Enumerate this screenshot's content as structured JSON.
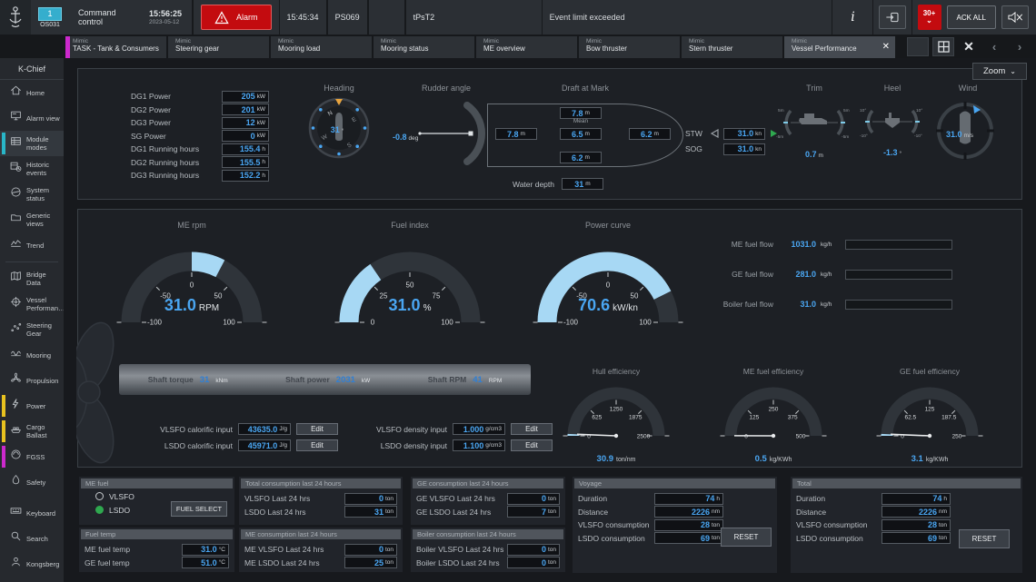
{
  "top_bar": {
    "station": {
      "number": "1",
      "name": "OS031"
    },
    "app_title": "Command control",
    "time": "15:56:25",
    "date": "2023-05-12",
    "alarm_button": "Alarm",
    "last_event_time": "15:45:34",
    "tag1": "PS069",
    "tag2": "tPsT2",
    "message": "Event limit exceeded",
    "unack_badge": "30+",
    "ack_all": "ACK ALL"
  },
  "tab_bar": {
    "tabs": [
      {
        "caption": "Mimic",
        "label": "TASK - Tank & Consumers",
        "accent": "#cc29cc",
        "active": false
      },
      {
        "caption": "Mimic",
        "label": "Steering gear",
        "active": false
      },
      {
        "caption": "Mimic",
        "label": "Mooring load",
        "active": false
      },
      {
        "caption": "Mimic",
        "label": "Mooring status",
        "active": false
      },
      {
        "caption": "Mimic",
        "label": "ME overview",
        "active": false
      },
      {
        "caption": "Mimic",
        "label": "Bow thruster",
        "active": false
      },
      {
        "caption": "Mimic",
        "label": "Stern thruster",
        "active": false
      },
      {
        "caption": "Mimic",
        "label": "Vessel Performance",
        "active": true,
        "closable": true
      }
    ]
  },
  "sidebar": {
    "title": "K-Chief",
    "primary": [
      {
        "label": "Home",
        "icon": "home"
      },
      {
        "label": "Alarm view",
        "icon": "alarm-view"
      },
      {
        "label": "Module modes",
        "icon": "module-modes",
        "accent": "#29b6c8",
        "active": true
      },
      {
        "label": "Historic events",
        "icon": "historic-events"
      },
      {
        "label": "System status",
        "icon": "system-status"
      },
      {
        "label": "Generic views",
        "icon": "generic-views"
      },
      {
        "label": "Trend",
        "icon": "trend"
      }
    ],
    "secondary": [
      {
        "label": "Bridge Data",
        "icon": "bridge-data"
      },
      {
        "label": "Vessel Performan…",
        "icon": "vessel-performance"
      },
      {
        "label": "Steering Gear",
        "icon": "steering-gear"
      },
      {
        "label": "Mooring",
        "icon": "mooring"
      },
      {
        "label": "Propulsion",
        "icon": "propulsion"
      },
      {
        "label": "Power",
        "icon": "power",
        "accent": "#e8c21f"
      },
      {
        "label": "Cargo Ballast",
        "icon": "cargo-ballast",
        "accent": "#e8c21f"
      },
      {
        "label": "FGSS",
        "icon": "fgss",
        "accent": "#cc29cc"
      },
      {
        "label": "Safety",
        "icon": "safety"
      }
    ],
    "footer": [
      {
        "label": "Keyboard",
        "icon": "keyboard"
      },
      {
        "label": "Search",
        "icon": "search"
      },
      {
        "label": "Kongsberg",
        "icon": "kongsberg"
      }
    ]
  },
  "zoom_control": {
    "label": "Zoom"
  },
  "power_summary": {
    "rows": [
      {
        "label": "DG1 Power",
        "value": "205",
        "unit": "kW"
      },
      {
        "label": "DG2 Power",
        "value": "201",
        "unit": "kW"
      },
      {
        "label": "DG3 Power",
        "value": "12",
        "unit": "kW"
      },
      {
        "label": "SG Power",
        "value": "0",
        "unit": "kW"
      },
      {
        "label": "DG1 Running hours",
        "value": "155.4",
        "unit": "h"
      },
      {
        "label": "DG2 Running hours",
        "value": "155.5",
        "unit": "h"
      },
      {
        "label": "DG3 Running hours",
        "value": "152.2",
        "unit": "h"
      }
    ]
  },
  "heading": {
    "title": "Heading",
    "value": "31",
    "unit": "°",
    "points": [
      "N",
      "E",
      "S",
      "W"
    ]
  },
  "rudder": {
    "title": "Rudder angle",
    "value": "-0.8",
    "unit": "deg"
  },
  "draft": {
    "title": "Draft at Mark",
    "mean_label": "Mean",
    "top": {
      "value": "7.8",
      "unit": "m"
    },
    "aft": {
      "value": "7.8",
      "unit": "m"
    },
    "mean": {
      "value": "6.5",
      "unit": "m"
    },
    "fwd": {
      "value": "6.2",
      "unit": "m"
    },
    "bottom": {
      "value": "6.2",
      "unit": "m"
    },
    "water_depth": {
      "label": "Water depth",
      "value": "31",
      "unit": "m"
    }
  },
  "speed": {
    "stw": {
      "label": "STW",
      "value": "31.0",
      "unit": "kn"
    },
    "sog": {
      "label": "SOG",
      "value": "31.0",
      "unit": "kn"
    }
  },
  "trim": {
    "title": "Trim",
    "value": "0.7",
    "unit": "m",
    "scale": [
      "5m",
      "-5m"
    ]
  },
  "heel": {
    "title": "Heel",
    "value": "-1.3",
    "unit": "°",
    "scale": [
      "10°",
      "-10°"
    ]
  },
  "wind": {
    "title": "Wind",
    "value": "31.0",
    "unit": "m/s"
  },
  "gauges": {
    "me_rpm": {
      "title": "ME rpm",
      "min": -100,
      "max": 100,
      "ticks": [
        "-100",
        "-50",
        "0",
        "50",
        "100"
      ],
      "value": 31,
      "display": "31.0",
      "unit": "RPM",
      "fill_from": 0,
      "size": "large"
    },
    "fuel_index": {
      "title": "Fuel index",
      "min": 0,
      "max": 100,
      "ticks": [
        "0",
        "25",
        "50",
        "75",
        "100"
      ],
      "value": 31,
      "display": "31.0",
      "unit": "%",
      "fill_from": 0,
      "size": "large"
    },
    "power_curve": {
      "title": "Power curve",
      "min": -100,
      "max": 100,
      "ticks": [
        "-100",
        "-50",
        "0",
        "50",
        "100"
      ],
      "value": 70.6,
      "display": "70.6",
      "unit": "kW/kn",
      "fill_from": -100,
      "size": "large"
    },
    "hull_efficiency": {
      "title": "Hull efficiency",
      "min": 0,
      "max": 2500,
      "ticks": [
        "0",
        "625",
        "1250",
        "1875",
        "2500"
      ],
      "value": 30.9,
      "display": "30.9",
      "unit": "ton/nm",
      "fill_from": 0,
      "needle": true,
      "size": "small"
    },
    "me_fuel_efficiency": {
      "title": "ME fuel efficiency",
      "min": 0,
      "max": 500,
      "ticks": [
        "0",
        "125",
        "250",
        "375",
        "500"
      ],
      "value": 0.5,
      "display": "0.5",
      "unit": "kg/KWh",
      "fill_from": 0,
      "needle": true,
      "size": "small"
    },
    "ge_fuel_efficiency": {
      "title": "GE fuel efficiency",
      "min": 0,
      "max": 250,
      "ticks": [
        "0",
        "62.5",
        "125",
        "187.5",
        "250"
      ],
      "value": 3.1,
      "display": "3.1",
      "unit": "kg/KWh",
      "fill_from": 0,
      "needle": true,
      "size": "small"
    }
  },
  "fuel_flow": {
    "rows": [
      {
        "label": "ME fuel flow",
        "value": "1031.0",
        "unit": "kg/h"
      },
      {
        "label": "GE fuel flow",
        "value": "281.0",
        "unit": "kg/h"
      },
      {
        "label": "Boiler fuel flow",
        "value": "31.0",
        "unit": "kg/h"
      }
    ]
  },
  "shaft": {
    "items": [
      {
        "label": "Shaft torque",
        "value": "31",
        "unit": "kNm"
      },
      {
        "label": "Shaft power",
        "value": "2031",
        "unit": "kW"
      },
      {
        "label": "Shaft RPM",
        "value": "41",
        "unit": "RPM"
      }
    ]
  },
  "fuel_inputs": {
    "edit_label": "Edit",
    "rows_left": [
      {
        "label": "VLSFO calorific input",
        "value": "43635.0",
        "unit": "J/g"
      },
      {
        "label": "LSDO calorific input",
        "value": "45971.0",
        "unit": "J/g"
      }
    ],
    "rows_right": [
      {
        "label": "VLSFO density input",
        "value": "1.000",
        "unit": "g/cm3"
      },
      {
        "label": "LSDO density input",
        "value": "1.100",
        "unit": "g/cm3"
      }
    ]
  },
  "bottom": {
    "me_fuel": {
      "title": "ME fuel",
      "options": [
        {
          "label": "VLSFO",
          "selected": false
        },
        {
          "label": "LSDO",
          "selected": true
        }
      ],
      "button": "FUEL SELECT"
    },
    "fuel_temp": {
      "title": "Fuel temp",
      "rows": [
        {
          "label": "ME fuel temp",
          "value": "31.0",
          "unit": "°C"
        },
        {
          "label": "GE fuel temp",
          "value": "51.0",
          "unit": "°C"
        }
      ]
    },
    "total_consumption": {
      "title": "Total consumption last 24 hours",
      "rows": [
        {
          "label": "VLSFO Last 24 hrs",
          "value": "0",
          "unit": "ton"
        },
        {
          "label": "LSDO Last 24 hrs",
          "value": "31",
          "unit": "ton"
        }
      ]
    },
    "me_consumption": {
      "title": "ME consumption last 24 hours",
      "rows": [
        {
          "label": "ME VLSFO Last 24 hrs",
          "value": "0",
          "unit": "ton"
        },
        {
          "label": "ME LSDO Last 24 hrs",
          "value": "25",
          "unit": "ton"
        }
      ]
    },
    "ge_consumption": {
      "title": "GE consumption last 24 hours",
      "rows": [
        {
          "label": "GE VLSFO Last 24 hrs",
          "value": "0",
          "unit": "ton"
        },
        {
          "label": "GE LSDO Last 24 hrs",
          "value": "7",
          "unit": "ton"
        }
      ]
    },
    "boiler_consumption": {
      "title": "Boiler consumption last 24 hours",
      "rows": [
        {
          "label": "Boiler VLSFO Last 24 hrs",
          "value": "0",
          "unit": "ton"
        },
        {
          "label": "Boiler LSDO Last 24 hrs",
          "value": "0",
          "unit": "ton"
        }
      ]
    },
    "voyage": {
      "title": "Voyage",
      "rows": [
        {
          "label": "Duration",
          "value": "74",
          "unit": "h"
        },
        {
          "label": "Distance",
          "value": "2226",
          "unit": "nm"
        },
        {
          "label": "VLSFO consumption",
          "value": "28",
          "unit": "ton"
        },
        {
          "label": "LSDO consumption",
          "value": "69",
          "unit": "ton"
        }
      ],
      "reset": "RESET"
    },
    "total": {
      "title": "Total",
      "rows": [
        {
          "label": "Duration",
          "value": "74",
          "unit": "h"
        },
        {
          "label": "Distance",
          "value": "2226",
          "unit": "nm"
        },
        {
          "label": "VLSFO consumption",
          "value": "28",
          "unit": "ton"
        },
        {
          "label": "LSDO consumption",
          "value": "69",
          "unit": "ton"
        }
      ],
      "reset": "RESET"
    }
  },
  "colors": {
    "accent_blue": "#4aa6f2",
    "gauge_fill": "#a7d8f4",
    "alarm_red": "#c30b0f",
    "green": "#2fa84f",
    "cyan": "#29b6c8",
    "yellow": "#e8c21f",
    "magenta": "#cc29cc",
    "orange": "#e8a33d"
  }
}
